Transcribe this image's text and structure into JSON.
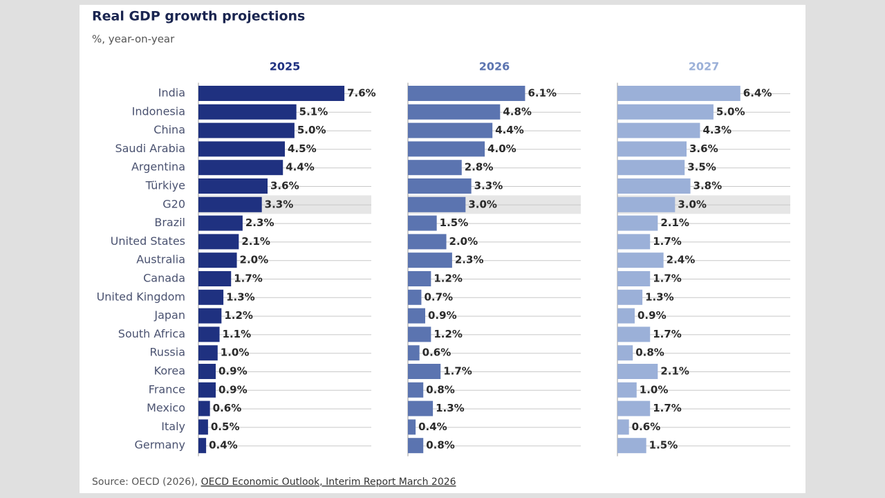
{
  "chart_data": {
    "type": "bar",
    "orientation": "horizontal",
    "title": "Real GDP growth projections",
    "subtitle": "%, year-on-year",
    "categories": [
      "India",
      "Indonesia",
      "China",
      "Saudi Arabia",
      "Argentina",
      "Türkiye",
      "G20",
      "Brazil",
      "United States",
      "Australia",
      "Canada",
      "United Kingdom",
      "Japan",
      "South Africa",
      "Russia",
      "Korea",
      "France",
      "Mexico",
      "Italy",
      "Germany"
    ],
    "highlight_index": 6,
    "xlim": [
      0,
      9
    ],
    "series": [
      {
        "name": "2025",
        "color": "#1f3180",
        "values": [
          7.6,
          5.1,
          5.0,
          4.5,
          4.4,
          3.6,
          3.3,
          2.3,
          2.1,
          2.0,
          1.7,
          1.3,
          1.2,
          1.1,
          1.0,
          0.9,
          0.9,
          0.6,
          0.5,
          0.4
        ],
        "value_labels": [
          "7.6%",
          "5.1%",
          "5.0%",
          "4.5%",
          "4.4%",
          "3.6%",
          "3.3%",
          "2.3%",
          "2.1%",
          "2.0%",
          "1.7%",
          "1.3%",
          "1.2%",
          "1.1%",
          "1.0%",
          "0.9%",
          "0.9%",
          "0.6%",
          "0.5%",
          "0.4%"
        ]
      },
      {
        "name": "2026",
        "color": "#5b74b0",
        "values": [
          6.1,
          4.8,
          4.4,
          4.0,
          2.8,
          3.3,
          3.0,
          1.5,
          2.0,
          2.3,
          1.2,
          0.7,
          0.9,
          1.2,
          0.6,
          1.7,
          0.8,
          1.3,
          0.4,
          0.8
        ],
        "value_labels": [
          "6.1%",
          "4.8%",
          "4.4%",
          "4.0%",
          "2.8%",
          "3.3%",
          "3.0%",
          "1.5%",
          "2.0%",
          "2.3%",
          "1.2%",
          "0.7%",
          "0.9%",
          "1.2%",
          "0.6%",
          "1.7%",
          "0.8%",
          "1.3%",
          "0.4%",
          "0.8%"
        ]
      },
      {
        "name": "2027",
        "color": "#9bb0d8",
        "values": [
          6.4,
          5.0,
          4.3,
          3.6,
          3.5,
          3.8,
          3.0,
          2.1,
          1.7,
          2.4,
          1.7,
          1.3,
          0.9,
          1.7,
          0.8,
          2.1,
          1.0,
          1.7,
          0.6,
          1.5
        ],
        "value_labels": [
          "6.4%",
          "5.0%",
          "4.3%",
          "3.6%",
          "3.5%",
          "3.8%",
          "3.0%",
          "2.1%",
          "1.7%",
          "2.4%",
          "1.7%",
          "1.3%",
          "0.9%",
          "1.7%",
          "0.8%",
          "2.1%",
          "1.0%",
          "1.7%",
          "0.6%",
          "1.5%"
        ]
      }
    ],
    "source": {
      "prefix": "Source: OECD (2026),",
      "link": "OECD Economic Outlook, Interim Report March 2026"
    }
  }
}
